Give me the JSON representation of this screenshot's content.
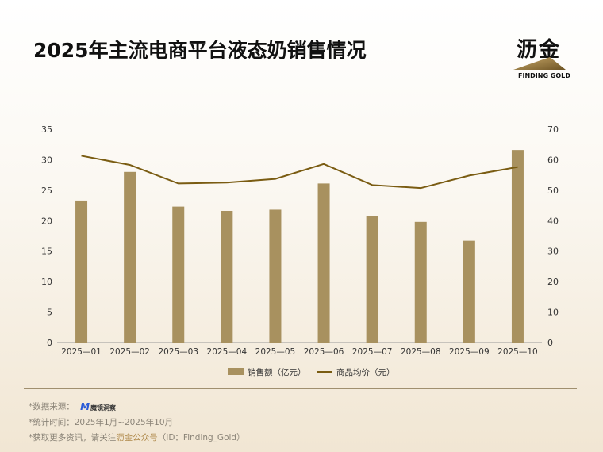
{
  "header": {
    "title": "2025年主流电商平台液态奶销售情况",
    "logo_text": "沥金",
    "logo_sub": "FINDING GOLD"
  },
  "colors": {
    "bar": "#a8915f",
    "line": "#7a5c12",
    "axis_text": "#333333",
    "accent": "#b08a4c"
  },
  "chart_data": {
    "type": "bar",
    "categories": [
      "2025—01",
      "2025—02",
      "2025—03",
      "2025—04",
      "2025—05",
      "2025—06",
      "2025—07",
      "2025—08",
      "2025—09",
      "2025—10"
    ],
    "series": [
      {
        "name": "销售额（亿元）",
        "type": "bar",
        "axis": "left",
        "values": [
          23.3,
          28.0,
          22.3,
          21.6,
          21.8,
          26.1,
          20.7,
          19.8,
          16.7,
          31.6
        ]
      },
      {
        "name": "商品均价（元）",
        "type": "line",
        "axis": "right",
        "values": [
          61.3,
          58.3,
          52.2,
          52.5,
          53.7,
          58.6,
          51.7,
          50.7,
          54.8,
          57.6
        ]
      }
    ],
    "y_left": {
      "min": 0,
      "max": 35,
      "ticks": [
        0,
        5,
        10,
        15,
        20,
        25,
        30,
        35
      ]
    },
    "y_right": {
      "min": 0,
      "max": 70,
      "ticks": [
        0,
        10,
        20,
        30,
        40,
        50,
        60,
        70
      ]
    },
    "grid": false,
    "legend_position": "bottom-center"
  },
  "footer": {
    "source_prefix": "*数据来源：",
    "source_logo_mark": "M",
    "source_logo_name": "魔镜洞察",
    "stat_time": "*统计时间：2025年1月~2025年10月",
    "info_prefix": "*获取更多资讯，请关注",
    "info_accent": "沥金公众号",
    "info_suffix": "（ID：Finding_Gold）"
  }
}
